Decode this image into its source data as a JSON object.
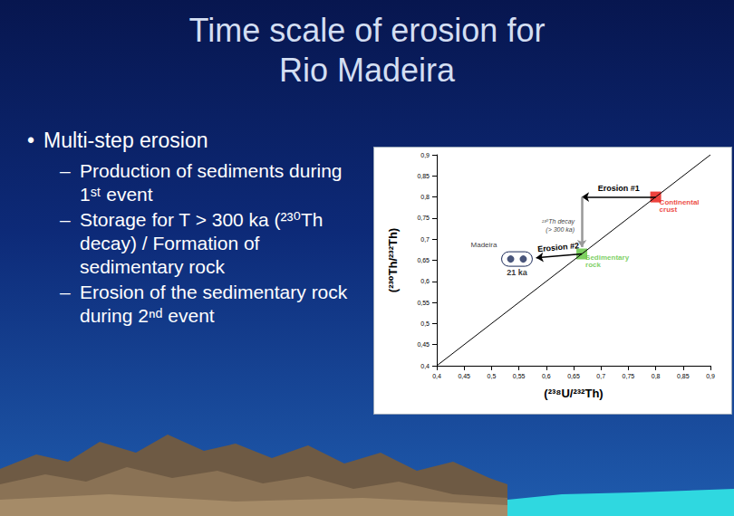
{
  "title": "Time scale of erosion for\nRio Madeira",
  "bullets": [
    {
      "text": "Multi-step erosion",
      "sub": [
        "Production of sediments during 1ˢᵗ event",
        "Storage for T > 300 ka (²³⁰Th decay) / Formation of sedimentary rock",
        "Erosion of the sedimentary rock during 2ⁿᵈ event"
      ]
    }
  ],
  "chart_data": {
    "type": "scatter",
    "xlabel": "(²³⁸U/²³²Th)",
    "ylabel": "(²³⁰Th/²³²Th)",
    "xlim": [
      0.4,
      0.9
    ],
    "ylim": [
      0.4,
      0.9
    ],
    "xticks": [
      {
        "value": 0.4,
        "label": "0,4"
      },
      {
        "value": 0.45,
        "label": "0,45"
      },
      {
        "value": 0.5,
        "label": "0,5"
      },
      {
        "value": 0.55,
        "label": "0,55"
      },
      {
        "value": 0.6,
        "label": "0,6"
      },
      {
        "value": 0.65,
        "label": "0,65"
      },
      {
        "value": 0.7,
        "label": "0,7"
      },
      {
        "value": 0.75,
        "label": "0,75"
      },
      {
        "value": 0.8,
        "label": "0,8"
      },
      {
        "value": 0.85,
        "label": "0,85"
      },
      {
        "value": 0.9,
        "label": "0,9"
      }
    ],
    "yticks": [
      {
        "value": 0.4,
        "label": "0,4"
      },
      {
        "value": 0.45,
        "label": "0,45"
      },
      {
        "value": 0.5,
        "label": "0,5"
      },
      {
        "value": 0.55,
        "label": "0,55"
      },
      {
        "value": 0.6,
        "label": "0,6"
      },
      {
        "value": 0.65,
        "label": "0,65"
      },
      {
        "value": 0.7,
        "label": "0,7"
      },
      {
        "value": 0.75,
        "label": "0,75"
      },
      {
        "value": 0.8,
        "label": "0,8"
      },
      {
        "value": 0.85,
        "label": "0,85"
      },
      {
        "value": 0.9,
        "label": "0,9"
      }
    ],
    "grid": false,
    "diagonal_line": {
      "x": [
        0.4,
        0.9
      ],
      "values": [
        0.4,
        0.9
      ]
    },
    "series": [
      {
        "name": "Continental crust",
        "color": "#e8140e",
        "marker": "square",
        "x": [
          0.8
        ],
        "values": [
          0.8
        ]
      },
      {
        "name": "Sedimentary rock",
        "color": "#5cc43a",
        "marker": "square",
        "x": [
          0.665
        ],
        "values": [
          0.665
        ]
      },
      {
        "name": "Madeira",
        "color": "#1c2b5a",
        "marker": "circle",
        "x": [
          0.535,
          0.558
        ],
        "values": [
          0.653,
          0.653
        ]
      }
    ],
    "annotations": {
      "erosion_1": "Erosion #1",
      "decay": "²³⁰Th decay\n(> 300 ka)",
      "erosion_2": "Erosion #2",
      "age": "21 ka"
    }
  }
}
